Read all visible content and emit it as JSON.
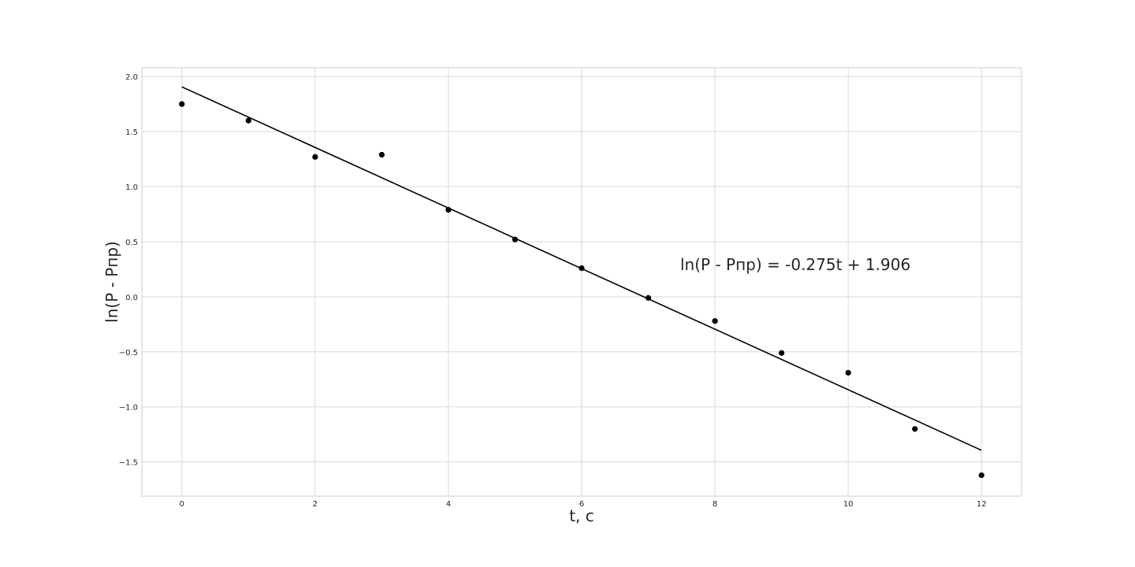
{
  "chart_data": {
    "type": "scatter",
    "xlabel": "t, c",
    "ylabel": "ln(P - Pпр)",
    "xlim": [
      -0.6,
      12.6
    ],
    "ylim": [
      -1.81,
      2.08
    ],
    "xticks": [
      0,
      2,
      4,
      6,
      8,
      10,
      12
    ],
    "xtick_labels": [
      "0",
      "2",
      "4",
      "6",
      "8",
      "10",
      "12"
    ],
    "yticks": [
      -1.5,
      -1.0,
      -0.5,
      0.0,
      0.5,
      1.0,
      1.5,
      2.0
    ],
    "ytick_labels": [
      "−1.5",
      "−1.0",
      "−0.5",
      "0.0",
      "0.5",
      "1.0",
      "1.5",
      "2.0"
    ],
    "grid": true,
    "series": [
      {
        "kind": "points",
        "color": "#000000",
        "x": [
          0,
          1,
          2,
          3,
          4,
          5,
          6,
          7,
          8,
          9,
          10,
          11,
          12
        ],
        "y": [
          1.75,
          1.6,
          1.27,
          1.29,
          0.79,
          0.52,
          0.26,
          -0.01,
          -0.22,
          -0.51,
          -0.69,
          -1.2,
          -1.62
        ]
      },
      {
        "kind": "line",
        "color": "#000000",
        "slope": -0.275,
        "intercept": 1.906,
        "x_range": [
          0,
          12
        ]
      }
    ],
    "annotations": [
      {
        "text": "ln(P - Pпр) = -0.275t + 1.906",
        "x": 7.5,
        "y": 0.29
      }
    ]
  }
}
